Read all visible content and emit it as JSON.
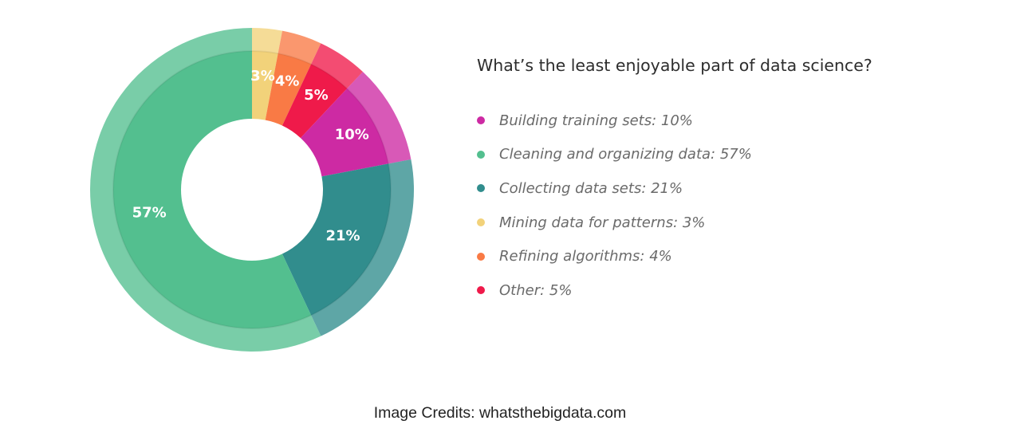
{
  "chart_data": {
    "type": "pie",
    "title": "What’s the least enjoyable part of data science?",
    "slices": [
      {
        "name": "Mining data for patterns",
        "value": 3,
        "label": "3%",
        "legend": "Mining data for patterns: 3%",
        "color": "#f2d27a"
      },
      {
        "name": "Refining algorithms",
        "value": 4,
        "label": "4%",
        "legend": "Refining algorithms: 4%",
        "color": "#f97a45"
      },
      {
        "name": "Other",
        "value": 5,
        "label": "5%",
        "legend": "Other: 5%",
        "color": "#ef1a4a"
      },
      {
        "name": "Building training sets",
        "value": 10,
        "label": "10%",
        "legend": "Building training sets: 10%",
        "color": "#cd2aa3"
      },
      {
        "name": "Collecting data sets",
        "value": 21,
        "label": "21%",
        "legend": "Collecting data sets: 21%",
        "color": "#318d8d"
      },
      {
        "name": "Cleaning and organizing data",
        "value": 57,
        "label": "57%",
        "legend": "Cleaning and organizing data: 57%",
        "color": "#53bf8f"
      }
    ],
    "legend_order": [
      "Building training sets",
      "Cleaning and organizing data",
      "Collecting data sets",
      "Mining data for patterns",
      "Refining algorithms",
      "Other"
    ],
    "legend_position": "right"
  },
  "credits": "Image Credits: whatsthebigdata.com"
}
